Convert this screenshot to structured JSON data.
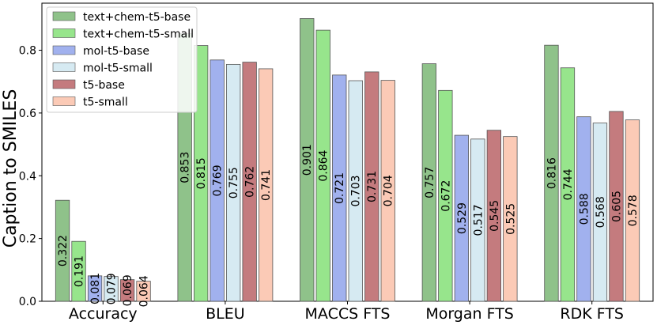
{
  "chart_data": {
    "type": "bar",
    "title": "",
    "xlabel": "",
    "ylabel": "Caption to SMILES",
    "ylim": [
      0,
      0.95
    ],
    "yticks": [
      "0.0",
      "0.2",
      "0.4",
      "0.6",
      "0.8"
    ],
    "grid": false,
    "legend_position": "top-left",
    "categories": [
      "Accuracy",
      "BLEU",
      "MACCS FTS",
      "Morgan FTS",
      "RDK FTS"
    ],
    "series": [
      {
        "name": "text+chem-t5-base",
        "color": "#8fc28a",
        "values": [
          0.322,
          0.853,
          0.901,
          0.757,
          0.816
        ],
        "labels": [
          "0.322",
          "0.853",
          "0.901",
          "0.757",
          "0.816"
        ]
      },
      {
        "name": "text+chem-t5-small",
        "color": "#97e58c",
        "values": [
          0.191,
          0.815,
          0.864,
          0.672,
          0.744
        ],
        "labels": [
          "0.191",
          "0.815",
          "0.864",
          "0.672",
          "0.744"
        ]
      },
      {
        "name": "mol-t5-base",
        "color": "#a1b1ee",
        "values": [
          0.081,
          0.769,
          0.721,
          0.529,
          0.588
        ],
        "labels": [
          "0.081",
          "0.769",
          "0.721",
          "0.529",
          "0.588"
        ]
      },
      {
        "name": "mol-t5-small",
        "color": "#d6eaf2",
        "values": [
          0.079,
          0.755,
          0.703,
          0.517,
          0.568
        ],
        "labels": [
          "0.079",
          "0.755",
          "0.703",
          "0.517",
          "0.568"
        ]
      },
      {
        "name": "t5-base",
        "color": "#c47b7e",
        "values": [
          0.069,
          0.762,
          0.731,
          0.545,
          0.605
        ],
        "labels": [
          "0.069",
          "0.762",
          "0.731",
          "0.545",
          "0.605"
        ]
      },
      {
        "name": "t5-small",
        "color": "#fbcab6",
        "values": [
          0.064,
          0.741,
          0.704,
          0.525,
          0.578
        ],
        "labels": [
          "0.064",
          "0.741",
          "0.704",
          "0.525",
          "0.578"
        ]
      }
    ]
  }
}
